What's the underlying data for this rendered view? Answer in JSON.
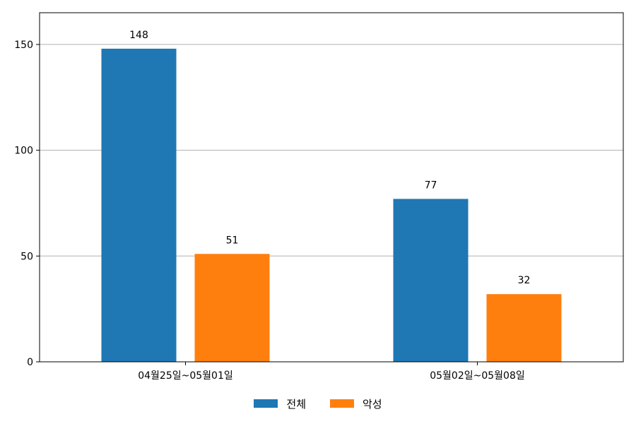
{
  "chart_data": {
    "type": "bar",
    "categories": [
      "04월25일~05월01일",
      "05월02일~05월08일"
    ],
    "series": [
      {
        "name": "전체",
        "values": [
          148,
          77
        ],
        "color": "#1f77b4"
      },
      {
        "name": "악성",
        "values": [
          51,
          32
        ],
        "color": "#ff7f0e"
      }
    ],
    "ylim": [
      0,
      165
    ],
    "yticks": [
      0,
      50,
      100,
      150
    ],
    "grid": "horizontal",
    "legend_position": "bottom-center"
  }
}
